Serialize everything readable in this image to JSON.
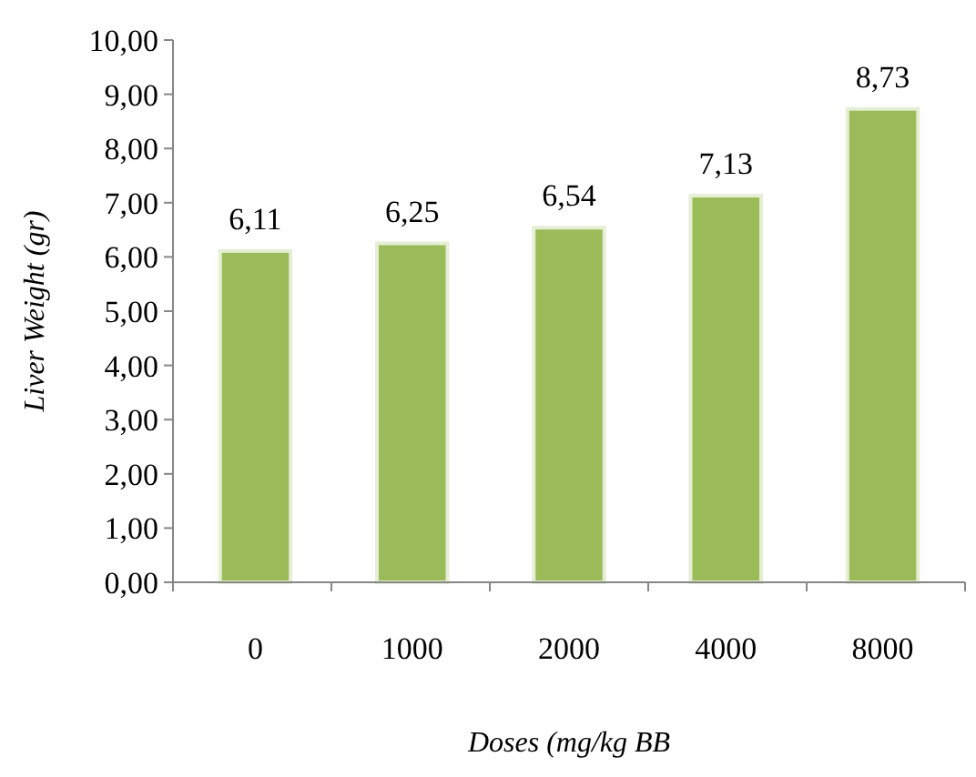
{
  "chart_data": {
    "type": "bar",
    "xlabel": "Doses (mg/kg BB",
    "ylabel": "Liver Weight (gr)",
    "categories": [
      "0",
      "1000",
      "2000",
      "4000",
      "8000"
    ],
    "values": [
      6.11,
      6.25,
      6.54,
      7.13,
      8.73
    ],
    "value_labels": [
      "6,11",
      "6,25",
      "6,54",
      "7,13",
      "8,73"
    ],
    "color": "#9bbb59",
    "ylim": [
      0,
      10
    ],
    "yticks": [
      {
        "value": 0,
        "label": "0,00"
      },
      {
        "value": 1,
        "label": "1,00"
      },
      {
        "value": 2,
        "label": "2,00"
      },
      {
        "value": 3,
        "label": "3,00"
      },
      {
        "value": 4,
        "label": "4,00"
      },
      {
        "value": 5,
        "label": "5,00"
      },
      {
        "value": 6,
        "label": "6,00"
      },
      {
        "value": 7,
        "label": "7,00"
      },
      {
        "value": 8,
        "label": "8,00"
      },
      {
        "value": 9,
        "label": "9,00"
      },
      {
        "value": 10,
        "label": "10,00"
      }
    ],
    "grid": false
  }
}
